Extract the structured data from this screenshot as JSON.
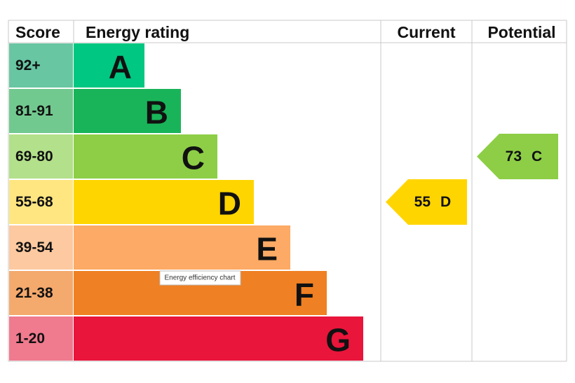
{
  "header": {
    "score": "Score",
    "rating": "Energy rating",
    "current": "Current",
    "potential": "Potential"
  },
  "rows": [
    {
      "score": "92+",
      "letter": "A"
    },
    {
      "score": "81-91",
      "letter": "B"
    },
    {
      "score": "69-80",
      "letter": "C"
    },
    {
      "score": "55-68",
      "letter": "D"
    },
    {
      "score": "39-54",
      "letter": "E"
    },
    {
      "score": "21-38",
      "letter": "F"
    },
    {
      "score": "1-20",
      "letter": "G"
    }
  ],
  "current": {
    "value": 55,
    "letter": "D"
  },
  "potential": {
    "value": 73,
    "letter": "C"
  },
  "tooltip": "Energy efficiency chart"
}
